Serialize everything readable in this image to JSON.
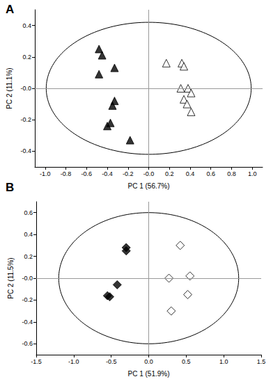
{
  "chart_data": [
    {
      "type": "scatter",
      "title": "A",
      "x_label": "PC 1 (56.7%)",
      "y_label": "PC 2 (11.1%)",
      "xlim": [
        -1.1,
        1.1
      ],
      "xticks": [
        {
          "value": -1,
          "label": "-1.0"
        },
        -0.8,
        -0.6,
        -0.4,
        -0.2,
        {
          "value": 0,
          "label": "-0.0"
        },
        0.2,
        0.4,
        0.6,
        0.8,
        {
          "value": 1,
          "label": "1.0"
        }
      ],
      "ylim": [
        -0.5,
        0.5
      ],
      "yticks": [
        -0.4,
        -0.2,
        {
          "value": 0,
          "label": "-0.0"
        },
        0.2,
        0.4
      ],
      "ellipse": {
        "rx": 0.99,
        "ry": 0.42
      },
      "series": [
        {
          "color": "#000000",
          "marker": "triangle",
          "x": [
            -0.48,
            -0.45,
            -0.33,
            -0.48,
            -0.33,
            -0.35,
            -0.37,
            -0.4,
            -0.18
          ],
          "y": [
            0.25,
            0.21,
            0.13,
            0.09,
            -0.08,
            -0.11,
            -0.22,
            -0.24,
            -0.33
          ]
        },
        {
          "color": "#000000",
          "marker": "open triangle",
          "x": [
            0.17,
            0.32,
            0.34,
            0.31,
            0.38,
            0.41,
            0.34,
            0.37,
            0.41
          ],
          "y": [
            0.16,
            0.16,
            0.14,
            0.0,
            0.0,
            -0.03,
            -0.07,
            -0.1,
            -0.15
          ]
        }
      ]
    },
    {
      "type": "scatter",
      "title": "B",
      "x_label": "PC 1 (51.9%)",
      "y_label": "PC 2 (11.5%)",
      "xlim": [
        -1.5,
        1.5
      ],
      "xticks": [
        -1.5,
        {
          "value": -1,
          "label": "-1.0"
        },
        -0.5,
        {
          "value": 0,
          "label": "0.0"
        },
        0.5,
        {
          "value": 1,
          "label": "1.0"
        },
        1.5
      ],
      "ylim": [
        -0.7,
        0.7
      ],
      "yticks": [
        -0.6,
        -0.4,
        -0.2,
        {
          "value": 0,
          "label": "-0.0"
        },
        0.2,
        0.4,
        0.6
      ],
      "ellipse": {
        "rx": 1.2,
        "ry": 0.6
      },
      "series": [
        {
          "color": "#000000",
          "marker": "diamond",
          "x": [
            -0.3,
            -0.3,
            -0.42,
            -0.55,
            -0.52
          ],
          "y": [
            0.28,
            0.25,
            -0.06,
            -0.16,
            -0.17
          ]
        },
        {
          "color": "#000000",
          "marker": "open diamond",
          "x": [
            0.42,
            0.55,
            0.27,
            0.52,
            0.3
          ],
          "y": [
            0.3,
            0.02,
            0.0,
            -0.15,
            -0.3
          ]
        }
      ]
    }
  ]
}
